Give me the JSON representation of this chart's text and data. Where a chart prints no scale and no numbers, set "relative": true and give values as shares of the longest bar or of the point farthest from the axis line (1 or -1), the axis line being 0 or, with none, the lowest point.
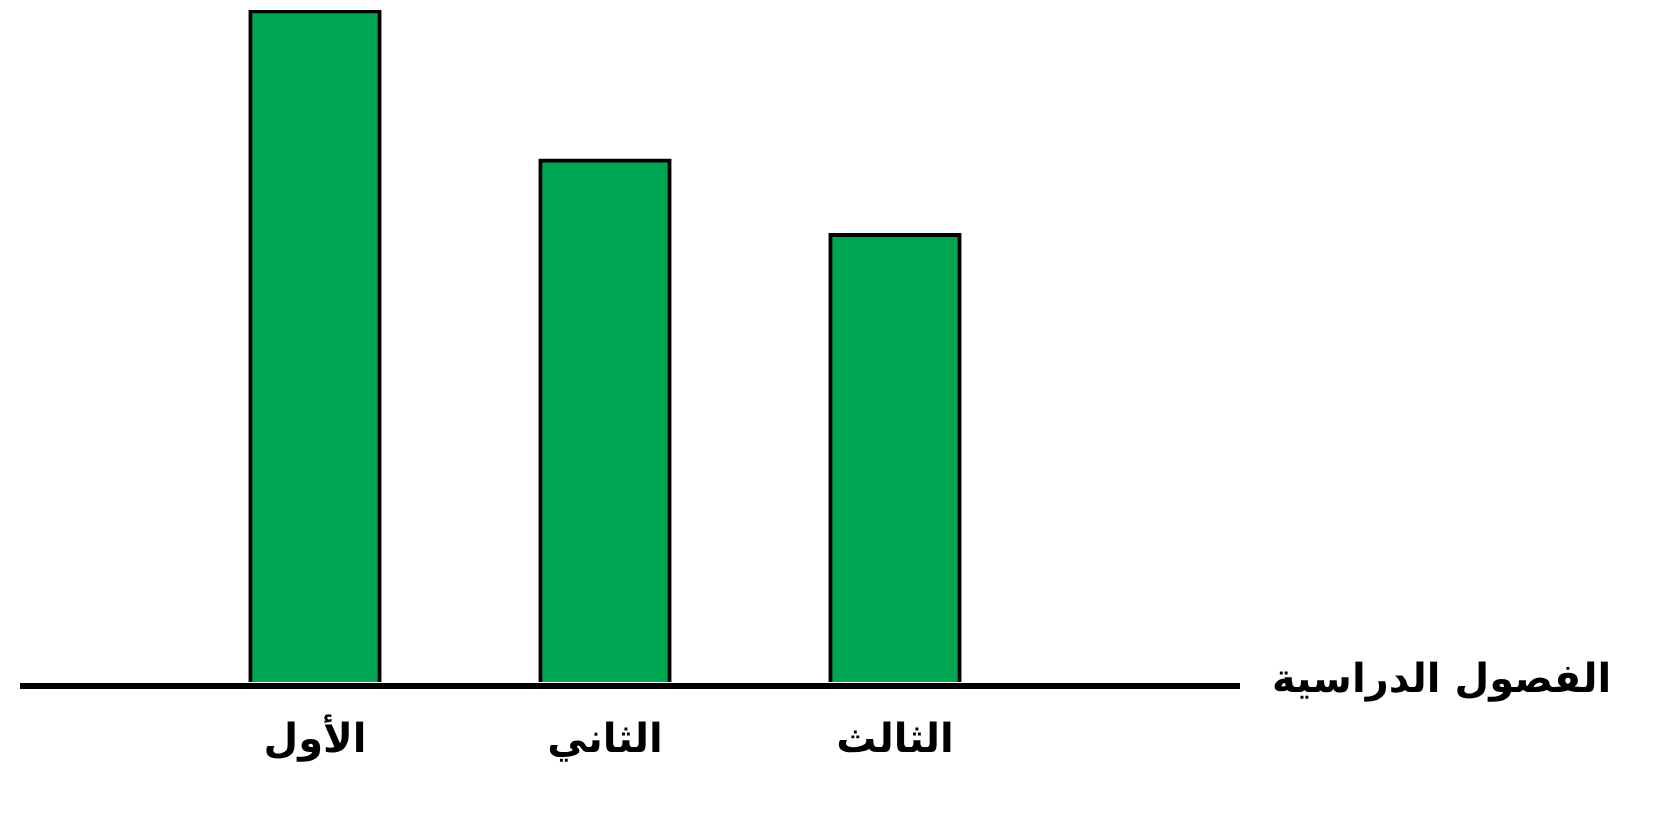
{
  "chart_data": {
    "type": "bar",
    "relative": true,
    "xlabel": "الفصول الدراسية",
    "categories": [
      "الأول",
      "الثاني",
      "الثالث"
    ],
    "values": [
      1,
      0.778,
      0.667
    ],
    "color": "#00a651",
    "grid": false,
    "legend": false
  }
}
